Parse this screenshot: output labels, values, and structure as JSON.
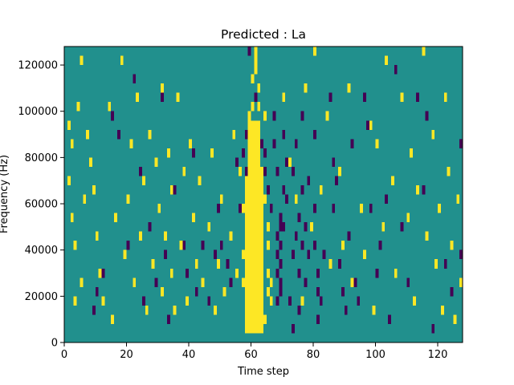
{
  "chart_data": {
    "type": "heatmap",
    "title": "Predicted : La",
    "xlabel": "Time step",
    "ylabel": "Frequency (Hz)",
    "xlim": [
      0,
      128
    ],
    "ylim": [
      0,
      128000
    ],
    "x_ticks": [
      0,
      20,
      40,
      60,
      80,
      100,
      120
    ],
    "y_ticks": [
      0,
      20000,
      40000,
      60000,
      80000,
      100000,
      120000
    ],
    "x_tick_labels": [
      "0",
      "20",
      "40",
      "60",
      "80",
      "100",
      "120"
    ],
    "y_tick_labels": [
      "0",
      "20000",
      "40000",
      "60000",
      "80000",
      "100000",
      "120000"
    ],
    "colormap": "viridis",
    "background_value": 0,
    "colors": {
      "background": "#21908d",
      "high": "#fde725",
      "low": "#440154"
    },
    "cell_height_hz": 4000,
    "bands": [
      {
        "value": 1,
        "x0": 58,
        "x1": 64,
        "y0": 4000,
        "y1": 76000
      },
      {
        "value": 1,
        "x0": 59,
        "x1": 63,
        "y0": 76000,
        "y1": 96000
      }
    ],
    "cells": [
      [
        61,
        124000,
        1
      ],
      [
        61,
        120000,
        1
      ],
      [
        61,
        116000,
        1
      ],
      [
        60,
        112000,
        1
      ],
      [
        62,
        108000,
        1
      ],
      [
        62,
        100000,
        1
      ],
      [
        60,
        100000,
        1
      ],
      [
        59,
        96000,
        1
      ],
      [
        64,
        96000,
        1
      ],
      [
        57,
        56000,
        1
      ],
      [
        57,
        36000,
        1
      ],
      [
        57,
        24000,
        1
      ],
      [
        65,
        48000,
        1
      ],
      [
        65,
        40000,
        1
      ],
      [
        65,
        28000,
        1
      ],
      [
        66,
        24000,
        1
      ],
      [
        65,
        20000,
        1
      ],
      [
        66,
        16000,
        1
      ],
      [
        58,
        16000,
        1
      ],
      [
        64,
        60000,
        1
      ],
      [
        64,
        8000,
        1
      ],
      [
        59,
        124000,
        0
      ],
      [
        61,
        104000,
        0
      ],
      [
        58,
        88000,
        0
      ],
      [
        57,
        80000,
        0
      ],
      [
        58,
        72000,
        0
      ],
      [
        63,
        84000,
        0
      ],
      [
        64,
        80000,
        0
      ],
      [
        64,
        72000,
        0
      ],
      [
        65,
        64000,
        0
      ],
      [
        66,
        56000,
        0
      ],
      [
        67,
        96000,
        0
      ],
      [
        67,
        84000,
        0
      ],
      [
        68,
        72000,
        0
      ],
      [
        68,
        44000,
        0
      ],
      [
        68,
        36000,
        0
      ],
      [
        68,
        28000,
        0
      ],
      [
        68,
        16000,
        0
      ],
      [
        69,
        52000,
        0
      ],
      [
        69,
        48000,
        0
      ],
      [
        69,
        40000,
        0
      ],
      [
        69,
        32000,
        0
      ],
      [
        69,
        24000,
        0
      ],
      [
        69,
        20000,
        0
      ],
      [
        70,
        48000,
        0
      ],
      [
        70,
        64000,
        0
      ],
      [
        70,
        88000,
        0
      ],
      [
        71,
        76000,
        0
      ],
      [
        71,
        60000,
        0
      ],
      [
        72,
        16000,
        0
      ],
      [
        73,
        4000,
        0
      ],
      [
        73,
        36000,
        0
      ],
      [
        73,
        72000,
        0
      ],
      [
        74,
        84000,
        0
      ],
      [
        74,
        44000,
        0
      ],
      [
        75,
        52000,
        0
      ],
      [
        75,
        28000,
        0
      ],
      [
        75,
        12000,
        0
      ],
      [
        76,
        96000,
        0
      ],
      [
        76,
        64000,
        0
      ],
      [
        76,
        40000,
        0
      ],
      [
        77,
        48000,
        0
      ],
      [
        77,
        24000,
        0
      ],
      [
        78,
        68000,
        0
      ],
      [
        78,
        36000,
        0
      ],
      [
        80,
        88000,
        0
      ],
      [
        80,
        56000,
        0
      ],
      [
        80,
        40000,
        0
      ],
      [
        81,
        28000,
        0
      ],
      [
        81,
        20000,
        0
      ],
      [
        81,
        8000,
        0
      ],
      [
        82,
        16000,
        0
      ],
      [
        83,
        36000,
        0
      ],
      [
        85,
        104000,
        0
      ],
      [
        86,
        76000,
        0
      ],
      [
        86,
        56000,
        0
      ],
      [
        87,
        68000,
        0
      ],
      [
        88,
        32000,
        0
      ],
      [
        89,
        20000,
        0
      ],
      [
        90,
        12000,
        0
      ],
      [
        91,
        44000,
        0
      ],
      [
        92,
        84000,
        0
      ],
      [
        93,
        24000,
        0
      ],
      [
        94,
        16000,
        0
      ],
      [
        96,
        104000,
        0
      ],
      [
        97,
        92000,
        0
      ],
      [
        98,
        56000,
        0
      ],
      [
        100,
        28000,
        0
      ],
      [
        101,
        40000,
        0
      ],
      [
        103,
        60000,
        0
      ],
      [
        104,
        8000,
        0
      ],
      [
        106,
        116000,
        0
      ],
      [
        108,
        48000,
        0
      ],
      [
        110,
        24000,
        0
      ],
      [
        113,
        104000,
        0
      ],
      [
        115,
        64000,
        0
      ],
      [
        116,
        96000,
        0
      ],
      [
        118,
        4000,
        0
      ],
      [
        122,
        32000,
        0
      ],
      [
        124,
        20000,
        0
      ],
      [
        127,
        84000,
        0
      ],
      [
        127,
        36000,
        0
      ],
      [
        9,
        12000,
        0
      ],
      [
        10,
        20000,
        0
      ],
      [
        12,
        28000,
        0
      ],
      [
        15,
        96000,
        0
      ],
      [
        17,
        88000,
        0
      ],
      [
        20,
        40000,
        0
      ],
      [
        22,
        112000,
        0
      ],
      [
        24,
        72000,
        0
      ],
      [
        25,
        16000,
        0
      ],
      [
        27,
        48000,
        0
      ],
      [
        29,
        24000,
        0
      ],
      [
        31,
        104000,
        0
      ],
      [
        32,
        36000,
        0
      ],
      [
        33,
        8000,
        0
      ],
      [
        35,
        64000,
        0
      ],
      [
        38,
        40000,
        0
      ],
      [
        39,
        28000,
        0
      ],
      [
        41,
        80000,
        0
      ],
      [
        42,
        20000,
        0
      ],
      [
        44,
        40000,
        0
      ],
      [
        46,
        16000,
        0
      ],
      [
        48,
        36000,
        0
      ],
      [
        49,
        56000,
        0
      ],
      [
        50,
        40000,
        0
      ],
      [
        52,
        32000,
        0
      ],
      [
        53,
        24000,
        0
      ],
      [
        55,
        76000,
        0
      ],
      [
        56,
        56000,
        0
      ],
      [
        7,
        88000,
        1
      ],
      [
        8,
        76000,
        1
      ],
      [
        9,
        64000,
        1
      ],
      [
        10,
        44000,
        1
      ],
      [
        11,
        28000,
        1
      ],
      [
        12,
        16000,
        1
      ],
      [
        14,
        100000,
        1
      ],
      [
        15,
        8000,
        1
      ],
      [
        16,
        52000,
        1
      ],
      [
        18,
        120000,
        1
      ],
      [
        19,
        36000,
        1
      ],
      [
        20,
        60000,
        1
      ],
      [
        21,
        84000,
        1
      ],
      [
        22,
        24000,
        1
      ],
      [
        23,
        104000,
        1
      ],
      [
        24,
        44000,
        1
      ],
      [
        25,
        68000,
        1
      ],
      [
        26,
        12000,
        1
      ],
      [
        27,
        88000,
        1
      ],
      [
        28,
        32000,
        1
      ],
      [
        29,
        76000,
        1
      ],
      [
        30,
        56000,
        1
      ],
      [
        31,
        20000,
        1
      ],
      [
        31,
        108000,
        1
      ],
      [
        32,
        44000,
        1
      ],
      [
        33,
        80000,
        1
      ],
      [
        34,
        28000,
        1
      ],
      [
        34,
        64000,
        1
      ],
      [
        35,
        12000,
        1
      ],
      [
        36,
        104000,
        1
      ],
      [
        37,
        40000,
        1
      ],
      [
        38,
        72000,
        1
      ],
      [
        39,
        16000,
        1
      ],
      [
        40,
        84000,
        1
      ],
      [
        41,
        52000,
        1
      ],
      [
        42,
        32000,
        1
      ],
      [
        43,
        68000,
        1
      ],
      [
        44,
        24000,
        1
      ],
      [
        46,
        48000,
        1
      ],
      [
        47,
        80000,
        1
      ],
      [
        48,
        12000,
        1
      ],
      [
        49,
        32000,
        1
      ],
      [
        50,
        60000,
        1
      ],
      [
        51,
        20000,
        1
      ],
      [
        53,
        44000,
        1
      ],
      [
        54,
        88000,
        1
      ],
      [
        55,
        28000,
        1
      ],
      [
        56,
        72000,
        1
      ],
      [
        1,
        92000,
        1
      ],
      [
        2,
        84000,
        1
      ],
      [
        1,
        68000,
        1
      ],
      [
        2,
        52000,
        1
      ],
      [
        3,
        40000,
        1
      ],
      [
        3,
        16000,
        1
      ],
      [
        5,
        24000,
        1
      ],
      [
        5,
        120000,
        1
      ],
      [
        4,
        100000,
        1
      ],
      [
        6,
        60000,
        1
      ],
      [
        70,
        104000,
        1
      ],
      [
        72,
        76000,
        1
      ],
      [
        74,
        60000,
        1
      ],
      [
        76,
        16000,
        1
      ],
      [
        77,
        108000,
        1
      ],
      [
        79,
        48000,
        1
      ],
      [
        80,
        124000,
        1
      ],
      [
        82,
        64000,
        1
      ],
      [
        84,
        96000,
        1
      ],
      [
        85,
        32000,
        1
      ],
      [
        88,
        72000,
        1
      ],
      [
        89,
        40000,
        1
      ],
      [
        91,
        108000,
        1
      ],
      [
        92,
        24000,
        1
      ],
      [
        95,
        56000,
        1
      ],
      [
        96,
        36000,
        1
      ],
      [
        98,
        92000,
        1
      ],
      [
        99,
        12000,
        1
      ],
      [
        100,
        84000,
        1
      ],
      [
        102,
        48000,
        1
      ],
      [
        103,
        120000,
        1
      ],
      [
        105,
        68000,
        1
      ],
      [
        106,
        28000,
        1
      ],
      [
        108,
        104000,
        1
      ],
      [
        110,
        52000,
        1
      ],
      [
        111,
        80000,
        1
      ],
      [
        112,
        16000,
        1
      ],
      [
        113,
        64000,
        1
      ],
      [
        115,
        124000,
        1
      ],
      [
        116,
        44000,
        1
      ],
      [
        118,
        88000,
        1
      ],
      [
        119,
        32000,
        1
      ],
      [
        120,
        56000,
        1
      ],
      [
        121,
        12000,
        1
      ],
      [
        122,
        104000,
        1
      ],
      [
        123,
        72000,
        1
      ],
      [
        124,
        40000,
        1
      ],
      [
        125,
        8000,
        1
      ],
      [
        126,
        60000,
        1
      ],
      [
        127,
        24000,
        1
      ]
    ]
  }
}
